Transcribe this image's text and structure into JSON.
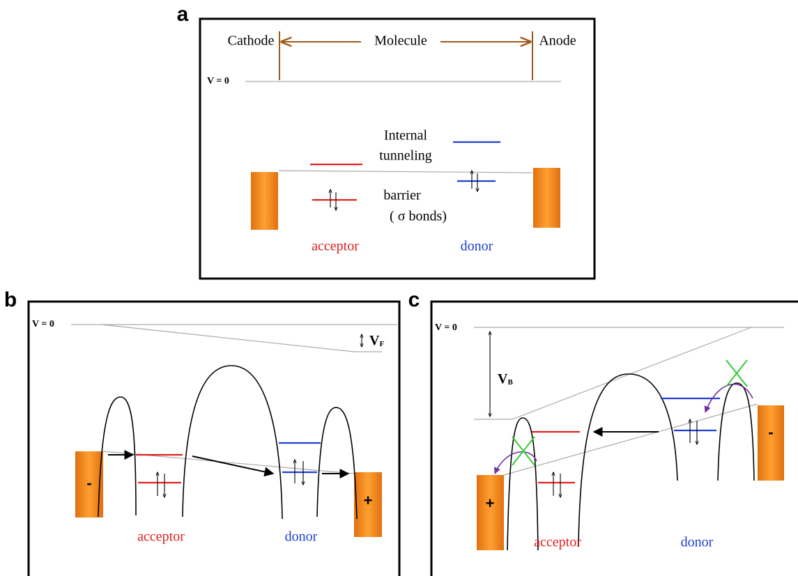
{
  "panel_a": {
    "label": "a",
    "cathode": "Cathode",
    "molecule": "Molecule",
    "anode": "Anode",
    "v0": "V = 0",
    "internal": "Internal",
    "tunneling": "tunneling",
    "barrier": "barrier",
    "sigma_bonds": "( σ bonds)",
    "acceptor": "acceptor",
    "donor": "donor"
  },
  "panel_b": {
    "label": "b",
    "v0": "V = 0",
    "vf": {
      "main": "V",
      "sub": "F"
    },
    "minus": "-",
    "plus": "+",
    "acceptor": "acceptor",
    "donor": "donor"
  },
  "panel_c": {
    "label": "c",
    "v0": "V = 0",
    "vb": {
      "main": "V",
      "sub": "B"
    },
    "minus": "-",
    "plus": "+",
    "acceptor": "acceptor",
    "donor": "donor"
  }
}
